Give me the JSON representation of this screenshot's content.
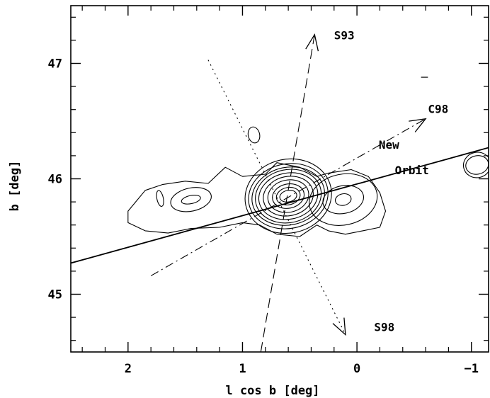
{
  "chart_data": {
    "type": "line",
    "xlabel": "l cos b [deg]",
    "ylabel": "b [deg]",
    "xlim": [
      2.5,
      -1.15
    ],
    "ylim": [
      44.5,
      47.5
    ],
    "x_ticks": [
      {
        "value": 2,
        "label": "2"
      },
      {
        "value": 1,
        "label": "1"
      },
      {
        "value": 0,
        "label": "0"
      },
      {
        "value": -1,
        "label": "−1"
      }
    ],
    "y_ticks": [
      {
        "value": 45,
        "label": "45"
      },
      {
        "value": 46,
        "label": "46"
      },
      {
        "value": 47,
        "label": "47"
      }
    ],
    "grid": false,
    "series": [
      {
        "name": "New Orbit",
        "style": "solid",
        "points": [
          [
            2.5,
            45.27
          ],
          [
            -1.15,
            46.27
          ]
        ]
      },
      {
        "name": "C98",
        "style": "dash-dot",
        "points": [
          [
            1.8,
            45.16
          ],
          [
            -0.6,
            46.52
          ]
        ],
        "arrow": "end"
      },
      {
        "name": "S93",
        "style": "dashed",
        "points": [
          [
            0.84,
            44.5
          ],
          [
            0.37,
            47.25
          ]
        ],
        "arrow": "end"
      },
      {
        "name": "S98",
        "style": "dotted",
        "points": [
          [
            1.3,
            47.03
          ],
          [
            0.1,
            44.65
          ]
        ],
        "arrow": "end"
      }
    ],
    "contours": [
      {
        "name": "main-core",
        "center": [
          0.6,
          45.85
        ],
        "levels": [
          [
            0.075,
            0.05
          ],
          [
            0.105,
            0.075
          ],
          [
            0.14,
            0.105
          ],
          [
            0.18,
            0.14
          ],
          [
            0.22,
            0.17
          ],
          [
            0.26,
            0.2
          ],
          [
            0.29,
            0.23
          ],
          [
            0.32,
            0.25
          ],
          [
            0.35,
            0.28
          ],
          [
            0.38,
            0.32
          ]
        ]
      },
      {
        "name": "east-clump",
        "center": [
          1.45,
          45.82
        ],
        "levels": [
          [
            0.085,
            0.035
          ],
          [
            0.18,
            0.1
          ]
        ]
      },
      {
        "name": "east-tip",
        "center": [
          1.72,
          45.83
        ],
        "levels": [
          [
            0.028,
            0.07
          ]
        ]
      },
      {
        "name": "west-clump",
        "center": [
          0.12,
          45.82
        ],
        "levels": [
          [
            0.07,
            0.05
          ],
          [
            0.18,
            0.12
          ],
          [
            0.3,
            0.22
          ]
        ]
      },
      {
        "name": "north-blob",
        "center": [
          0.9,
          46.38
        ],
        "levels": [
          [
            0.05,
            0.07
          ]
        ]
      },
      {
        "name": "edge-clump",
        "center": [
          -1.05,
          46.12
        ],
        "levels": [
          [
            0.1,
            0.08
          ],
          [
            0.12,
            0.11
          ]
        ]
      }
    ],
    "envelope": {
      "name": "outer-envelope",
      "points": [
        [
          2.0,
          45.72
        ],
        [
          1.95,
          45.78
        ],
        [
          1.85,
          45.9
        ],
        [
          1.7,
          45.95
        ],
        [
          1.5,
          45.98
        ],
        [
          1.3,
          45.96
        ],
        [
          1.15,
          46.1
        ],
        [
          1.0,
          46.02
        ],
        [
          0.8,
          46.04
        ],
        [
          0.7,
          46.14
        ],
        [
          0.5,
          46.1
        ],
        [
          0.35,
          46.02
        ],
        [
          0.25,
          46.05
        ],
        [
          0.05,
          46.08
        ],
        [
          -0.1,
          46.02
        ],
        [
          -0.2,
          45.88
        ],
        [
          -0.25,
          45.72
        ],
        [
          -0.2,
          45.58
        ],
        [
          -0.05,
          45.55
        ],
        [
          0.1,
          45.52
        ],
        [
          0.25,
          45.55
        ],
        [
          0.35,
          45.6
        ],
        [
          0.5,
          45.5
        ],
        [
          0.7,
          45.52
        ],
        [
          0.85,
          45.6
        ],
        [
          1.0,
          45.62
        ],
        [
          1.2,
          45.58
        ],
        [
          1.45,
          45.57
        ],
        [
          1.65,
          45.53
        ],
        [
          1.85,
          45.55
        ],
        [
          2.0,
          45.62
        ]
      ]
    },
    "annotations": [
      {
        "text": "S93",
        "x": 0.2,
        "y": 47.21,
        "anchor": "start"
      },
      {
        "text": "C98",
        "x": -0.62,
        "y": 46.57,
        "anchor": "start"
      },
      {
        "text": "S98",
        "x": -0.15,
        "y": 44.68,
        "anchor": "start"
      },
      {
        "text": "New",
        "x": -0.28,
        "y": 46.26,
        "anchor": "middle"
      },
      {
        "text": "Orbit",
        "x": -0.48,
        "y": 46.04,
        "anchor": "middle"
      }
    ]
  }
}
